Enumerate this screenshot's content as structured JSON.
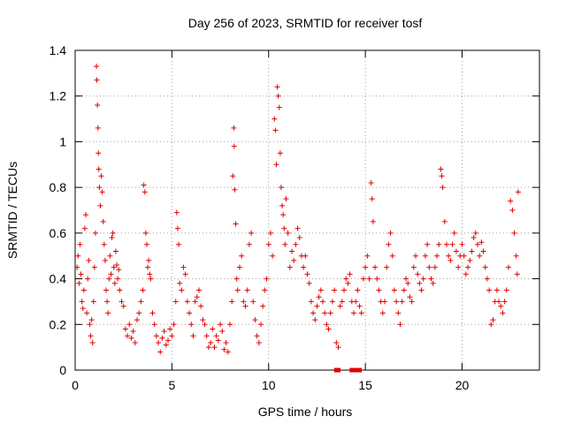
{
  "chart_data": {
    "type": "scatter",
    "title": "Day 256 of 2023, SRMTID for receiver tosf",
    "xlabel": "GPS time / hours",
    "ylabel": "SRMTID / TECUs",
    "xlim": [
      0,
      24
    ],
    "ylim": [
      0,
      1.4
    ],
    "xticks": [
      0,
      5,
      10,
      15,
      20
    ],
    "xtick_labels": [
      "0",
      "5",
      "10",
      "15",
      "20"
    ],
    "yticks": [
      0,
      0.2,
      0.4,
      0.6,
      0.8,
      1,
      1.2,
      1.4
    ],
    "ytick_labels": [
      "0",
      "0.2",
      "0.4",
      "0.6",
      "0.8",
      "1",
      "1.2",
      "1.4"
    ],
    "grid": true,
    "marker": "plus",
    "color": "#e00000",
    "series": [
      {
        "name": "SRMTID",
        "points": [
          [
            0.1,
            0.45
          ],
          [
            0.15,
            0.5
          ],
          [
            0.2,
            0.38
          ],
          [
            0.25,
            0.55
          ],
          [
            0.3,
            0.42
          ],
          [
            0.35,
            0.3
          ],
          [
            0.4,
            0.27
          ],
          [
            0.45,
            0.35
          ],
          [
            0.5,
            0.62
          ],
          [
            0.55,
            0.68
          ],
          [
            0.6,
            0.25
          ],
          [
            0.65,
            0.4
          ],
          [
            0.7,
            0.48
          ],
          [
            0.75,
            0.2
          ],
          [
            0.8,
            0.15
          ],
          [
            0.85,
            0.22
          ],
          [
            0.9,
            0.12
          ],
          [
            0.95,
            0.3
          ],
          [
            1.0,
            0.45
          ],
          [
            1.05,
            0.6
          ],
          [
            1.1,
            1.33
          ],
          [
            1.12,
            1.27
          ],
          [
            1.15,
            1.16
          ],
          [
            1.18,
            1.06
          ],
          [
            1.2,
            0.95
          ],
          [
            1.22,
            0.88
          ],
          [
            1.25,
            0.8
          ],
          [
            1.3,
            0.72
          ],
          [
            1.35,
            0.85
          ],
          [
            1.4,
            0.78
          ],
          [
            1.45,
            0.65
          ],
          [
            1.5,
            0.55
          ],
          [
            1.55,
            0.48
          ],
          [
            1.6,
            0.35
          ],
          [
            1.65,
            0.3
          ],
          [
            1.7,
            0.25
          ],
          [
            1.75,
            0.4
          ],
          [
            1.8,
            0.5
          ],
          [
            1.85,
            0.42
          ],
          [
            1.9,
            0.58
          ],
          [
            1.95,
            0.6
          ],
          [
            2.0,
            0.45
          ],
          [
            2.05,
            0.38
          ],
          [
            2.1,
            0.52
          ],
          [
            2.15,
            0.46
          ],
          [
            2.2,
            0.4
          ],
          [
            2.25,
            0.44
          ],
          [
            2.3,
            0.35
          ],
          [
            2.4,
            0.3
          ],
          [
            2.5,
            0.28
          ],
          [
            2.6,
            0.18
          ],
          [
            2.7,
            0.15
          ],
          [
            2.8,
            0.2
          ],
          [
            2.9,
            0.14
          ],
          [
            3.0,
            0.17
          ],
          [
            3.1,
            0.12
          ],
          [
            3.2,
            0.22
          ],
          [
            3.3,
            0.25
          ],
          [
            3.4,
            0.3
          ],
          [
            3.5,
            0.35
          ],
          [
            3.55,
            0.81
          ],
          [
            3.6,
            0.78
          ],
          [
            3.65,
            0.6
          ],
          [
            3.7,
            0.55
          ],
          [
            3.75,
            0.45
          ],
          [
            3.8,
            0.48
          ],
          [
            3.85,
            0.42
          ],
          [
            3.9,
            0.4
          ],
          [
            4.0,
            0.25
          ],
          [
            4.1,
            0.2
          ],
          [
            4.2,
            0.15
          ],
          [
            4.3,
            0.12
          ],
          [
            4.4,
            0.08
          ],
          [
            4.5,
            0.14
          ],
          [
            4.6,
            0.17
          ],
          [
            4.7,
            0.11
          ],
          [
            4.8,
            0.13
          ],
          [
            4.9,
            0.18
          ],
          [
            5.0,
            0.15
          ],
          [
            5.1,
            0.2
          ],
          [
            5.2,
            0.3
          ],
          [
            5.25,
            0.69
          ],
          [
            5.3,
            0.62
          ],
          [
            5.35,
            0.55
          ],
          [
            5.4,
            0.38
          ],
          [
            5.5,
            0.35
          ],
          [
            5.6,
            0.45
          ],
          [
            5.7,
            0.42
          ],
          [
            5.8,
            0.3
          ],
          [
            5.9,
            0.25
          ],
          [
            6.0,
            0.2
          ],
          [
            6.1,
            0.15
          ],
          [
            6.2,
            0.3
          ],
          [
            6.3,
            0.32
          ],
          [
            6.4,
            0.35
          ],
          [
            6.5,
            0.28
          ],
          [
            6.6,
            0.22
          ],
          [
            6.7,
            0.2
          ],
          [
            6.8,
            0.15
          ],
          [
            6.9,
            0.1
          ],
          [
            7.0,
            0.12
          ],
          [
            7.1,
            0.18
          ],
          [
            7.2,
            0.1
          ],
          [
            7.3,
            0.15
          ],
          [
            7.4,
            0.13
          ],
          [
            7.5,
            0.2
          ],
          [
            7.6,
            0.17
          ],
          [
            7.7,
            0.09
          ],
          [
            7.8,
            0.12
          ],
          [
            7.9,
            0.08
          ],
          [
            8.0,
            0.2
          ],
          [
            8.1,
            0.3
          ],
          [
            8.15,
            0.85
          ],
          [
            8.2,
            1.06
          ],
          [
            8.22,
            0.98
          ],
          [
            8.25,
            0.79
          ],
          [
            8.3,
            0.64
          ],
          [
            8.35,
            0.4
          ],
          [
            8.4,
            0.35
          ],
          [
            8.5,
            0.45
          ],
          [
            8.6,
            0.5
          ],
          [
            8.7,
            0.3
          ],
          [
            8.8,
            0.28
          ],
          [
            8.9,
            0.35
          ],
          [
            9.0,
            0.55
          ],
          [
            9.1,
            0.6
          ],
          [
            9.2,
            0.3
          ],
          [
            9.3,
            0.22
          ],
          [
            9.4,
            0.15
          ],
          [
            9.5,
            0.12
          ],
          [
            9.6,
            0.2
          ],
          [
            9.7,
            0.28
          ],
          [
            9.8,
            0.35
          ],
          [
            9.9,
            0.4
          ],
          [
            10.0,
            0.55
          ],
          [
            10.1,
            0.6
          ],
          [
            10.2,
            0.5
          ],
          [
            10.3,
            1.1
          ],
          [
            10.35,
            1.05
          ],
          [
            10.4,
            0.9
          ],
          [
            10.45,
            1.24
          ],
          [
            10.5,
            1.2
          ],
          [
            10.55,
            1.15
          ],
          [
            10.6,
            0.95
          ],
          [
            10.65,
            0.8
          ],
          [
            10.7,
            0.72
          ],
          [
            10.75,
            0.68
          ],
          [
            10.8,
            0.62
          ],
          [
            10.85,
            0.55
          ],
          [
            10.9,
            0.75
          ],
          [
            11.0,
            0.6
          ],
          [
            11.1,
            0.45
          ],
          [
            11.2,
            0.52
          ],
          [
            11.3,
            0.48
          ],
          [
            11.4,
            0.55
          ],
          [
            11.5,
            0.62
          ],
          [
            11.6,
            0.58
          ],
          [
            11.7,
            0.5
          ],
          [
            11.8,
            0.45
          ],
          [
            11.9,
            0.5
          ],
          [
            12.0,
            0.42
          ],
          [
            12.1,
            0.38
          ],
          [
            12.2,
            0.3
          ],
          [
            12.3,
            0.25
          ],
          [
            12.4,
            0.22
          ],
          [
            12.5,
            0.28
          ],
          [
            12.6,
            0.32
          ],
          [
            12.7,
            0.35
          ],
          [
            12.8,
            0.3
          ],
          [
            12.9,
            0.25
          ],
          [
            13.0,
            0.2
          ],
          [
            13.1,
            0.18
          ],
          [
            13.2,
            0.25
          ],
          [
            13.3,
            0.3
          ],
          [
            13.4,
            0.35
          ],
          [
            13.5,
            0.12
          ],
          [
            13.6,
            0.1
          ],
          [
            13.7,
            0.28
          ],
          [
            13.8,
            0.3
          ],
          [
            13.9,
            0.35
          ],
          [
            14.0,
            0.4
          ],
          [
            14.1,
            0.38
          ],
          [
            14.2,
            0.42
          ],
          [
            14.3,
            0.3
          ],
          [
            14.4,
            0.25
          ],
          [
            14.5,
            0.3
          ],
          [
            14.6,
            0.35
          ],
          [
            14.7,
            0.28
          ],
          [
            14.8,
            0.25
          ],
          [
            14.9,
            0.4
          ],
          [
            15.0,
            0.45
          ],
          [
            15.1,
            0.5
          ],
          [
            15.2,
            0.4
          ],
          [
            15.3,
            0.82
          ],
          [
            15.35,
            0.75
          ],
          [
            15.4,
            0.65
          ],
          [
            15.5,
            0.45
          ],
          [
            15.6,
            0.4
          ],
          [
            15.7,
            0.35
          ],
          [
            15.8,
            0.3
          ],
          [
            15.9,
            0.25
          ],
          [
            16.0,
            0.3
          ],
          [
            16.1,
            0.45
          ],
          [
            16.2,
            0.55
          ],
          [
            16.3,
            0.6
          ],
          [
            16.4,
            0.5
          ],
          [
            16.5,
            0.35
          ],
          [
            16.6,
            0.3
          ],
          [
            16.7,
            0.25
          ],
          [
            16.8,
            0.2
          ],
          [
            16.9,
            0.3
          ],
          [
            17.0,
            0.35
          ],
          [
            17.1,
            0.4
          ],
          [
            17.2,
            0.38
          ],
          [
            17.3,
            0.32
          ],
          [
            17.4,
            0.3
          ],
          [
            17.5,
            0.45
          ],
          [
            17.6,
            0.5
          ],
          [
            17.7,
            0.42
          ],
          [
            17.8,
            0.38
          ],
          [
            17.9,
            0.35
          ],
          [
            18.0,
            0.4
          ],
          [
            18.1,
            0.5
          ],
          [
            18.2,
            0.55
          ],
          [
            18.3,
            0.45
          ],
          [
            18.4,
            0.4
          ],
          [
            18.5,
            0.38
          ],
          [
            18.6,
            0.45
          ],
          [
            18.7,
            0.5
          ],
          [
            18.8,
            0.55
          ],
          [
            18.9,
            0.88
          ],
          [
            18.95,
            0.85
          ],
          [
            19.0,
            0.8
          ],
          [
            19.1,
            0.65
          ],
          [
            19.2,
            0.55
          ],
          [
            19.3,
            0.5
          ],
          [
            19.4,
            0.48
          ],
          [
            19.5,
            0.55
          ],
          [
            19.6,
            0.6
          ],
          [
            19.7,
            0.52
          ],
          [
            19.8,
            0.45
          ],
          [
            19.9,
            0.5
          ],
          [
            20.0,
            0.55
          ],
          [
            20.1,
            0.5
          ],
          [
            20.2,
            0.42
          ],
          [
            20.3,
            0.45
          ],
          [
            20.4,
            0.48
          ],
          [
            20.5,
            0.52
          ],
          [
            20.6,
            0.58
          ],
          [
            20.7,
            0.6
          ],
          [
            20.8,
            0.55
          ],
          [
            20.9,
            0.5
          ],
          [
            21.0,
            0.56
          ],
          [
            21.1,
            0.52
          ],
          [
            21.2,
            0.45
          ],
          [
            21.3,
            0.4
          ],
          [
            21.4,
            0.35
          ],
          [
            21.5,
            0.2
          ],
          [
            21.6,
            0.22
          ],
          [
            21.7,
            0.3
          ],
          [
            21.8,
            0.35
          ],
          [
            21.9,
            0.3
          ],
          [
            22.0,
            0.28
          ],
          [
            22.1,
            0.25
          ],
          [
            22.2,
            0.3
          ],
          [
            22.3,
            0.35
          ],
          [
            22.4,
            0.45
          ],
          [
            22.5,
            0.74
          ],
          [
            22.6,
            0.7
          ],
          [
            22.7,
            0.6
          ],
          [
            22.8,
            0.5
          ],
          [
            22.85,
            0.42
          ],
          [
            22.9,
            0.78
          ]
        ]
      },
      {
        "name": "zero markers",
        "marker": "square",
        "points": [
          [
            13.5,
            0.0
          ],
          [
            13.6,
            0.0
          ],
          [
            14.3,
            0.0
          ],
          [
            14.5,
            0.0
          ],
          [
            14.7,
            0.0
          ]
        ]
      }
    ]
  }
}
